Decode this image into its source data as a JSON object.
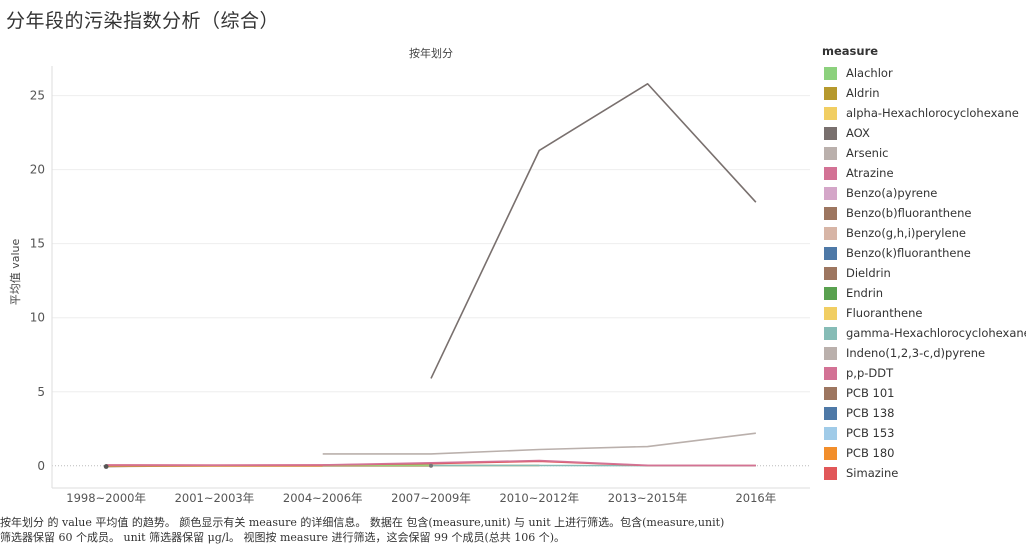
{
  "title": "分年段的污染指数分析（综合）",
  "caption_lines": [
    "按年划分 的 value 平均值 的趋势。 颜色显示有关 measure 的详细信息。 数据在 包含(measure,unit) 与 unit 上进行筛选。包含(measure,unit)",
    "筛选器保留 60 个成员。 unit 筛选器保留 μg/l。 视图按 measure 进行筛选，这会保留 99 个成员(总共 106 个)。"
  ],
  "chart_data": {
    "type": "line",
    "title": "按年划分",
    "xlabel": "",
    "ylabel": "平均值 value",
    "categories": [
      "1998~2000年",
      "2001~2003年",
      "2004~2006年",
      "2007~2009年",
      "2010~2012年",
      "2013~2015年",
      "2016年"
    ],
    "yticks": [
      0,
      5,
      10,
      15,
      20,
      25
    ],
    "ylim": [
      -1.5,
      27
    ],
    "grid": true,
    "legend_title": "measure",
    "legend_position": "right",
    "series": [
      {
        "name": "Alachlor",
        "color": "#8cd17d",
        "values": [
          null,
          null,
          0.05,
          0.05,
          null,
          null,
          null
        ]
      },
      {
        "name": "Aldrin",
        "color": "#b6992d",
        "values": [
          null,
          null,
          0.02,
          0.02,
          null,
          null,
          null
        ]
      },
      {
        "name": "alpha-Hexachlorocyclohexane",
        "color": "#f1ce63",
        "values": [
          null,
          null,
          0.03,
          0.03,
          null,
          null,
          null
        ]
      },
      {
        "name": "AOX",
        "color": "#79706e",
        "values": [
          null,
          null,
          null,
          5.9,
          21.3,
          25.8,
          17.8
        ]
      },
      {
        "name": "Arsenic",
        "color": "#bab0ac",
        "values": [
          null,
          null,
          0.8,
          0.8,
          1.1,
          1.3,
          2.2
        ]
      },
      {
        "name": "Atrazine",
        "color": "#d37295",
        "values": [
          0.05,
          0.04,
          0.06,
          0.2,
          0.35,
          0.03,
          0.02
        ]
      },
      {
        "name": "Benzo(a)pyrene",
        "color": "#d4a6c8",
        "values": [
          null,
          null,
          0.01,
          0.01,
          0.01,
          null,
          null
        ]
      },
      {
        "name": "Benzo(b)fluoranthene",
        "color": "#9d7660",
        "values": [
          null,
          null,
          0.01,
          0.01,
          0.01,
          null,
          null
        ]
      },
      {
        "name": "Benzo(g,h,i)perylene",
        "color": "#d7b5a6",
        "values": [
          null,
          null,
          0.01,
          0.01,
          0.01,
          null,
          null
        ]
      },
      {
        "name": "Benzo(k)fluoranthene",
        "color": "#4e79a7",
        "values": [
          null,
          null,
          0.01,
          0.01,
          0.01,
          null,
          null
        ]
      },
      {
        "name": "Dieldrin",
        "color": "#9d7660",
        "values": [
          null,
          null,
          0.01,
          0.01,
          null,
          null,
          null
        ]
      },
      {
        "name": "Endrin",
        "color": "#59a14f",
        "values": [
          null,
          null,
          0.01,
          0.01,
          null,
          null,
          null
        ]
      },
      {
        "name": "Fluoranthene",
        "color": "#f1ce63",
        "values": [
          null,
          null,
          0.02,
          0.02,
          0.02,
          null,
          null
        ]
      },
      {
        "name": "gamma-Hexachlorocyclohexane",
        "color": "#86bcb6",
        "values": [
          null,
          null,
          0.02,
          0.02,
          0.02,
          0.01,
          0.01
        ]
      },
      {
        "name": "Indeno(1,2,3-c,d)pyrene",
        "color": "#bab0ac",
        "values": [
          null,
          null,
          0.01,
          0.01,
          0.01,
          null,
          null
        ]
      },
      {
        "name": "p,p-DDT",
        "color": "#d37295",
        "values": [
          null,
          null,
          0.01,
          0.01,
          null,
          null,
          null
        ]
      },
      {
        "name": "PCB 101",
        "color": "#9d7660",
        "values": [
          -0.05,
          0.0,
          0.0,
          0.0,
          null,
          null,
          null
        ]
      },
      {
        "name": "PCB 138",
        "color": "#4e79a7",
        "values": [
          0.0,
          0.0,
          0.0,
          0.0,
          null,
          null,
          null
        ]
      },
      {
        "name": "PCB 153",
        "color": "#a0cbe8",
        "values": [
          0.0,
          0.0,
          0.0,
          0.0,
          null,
          null,
          null
        ]
      },
      {
        "name": "PCB 180",
        "color": "#f28e2b",
        "values": [
          0.0,
          0.0,
          0.0,
          0.0,
          null,
          null,
          null
        ]
      },
      {
        "name": "Simazine",
        "color": "#e15759",
        "values": [
          0.05,
          0.04,
          0.05,
          0.15,
          0.3,
          0.02,
          0.02
        ]
      }
    ]
  }
}
